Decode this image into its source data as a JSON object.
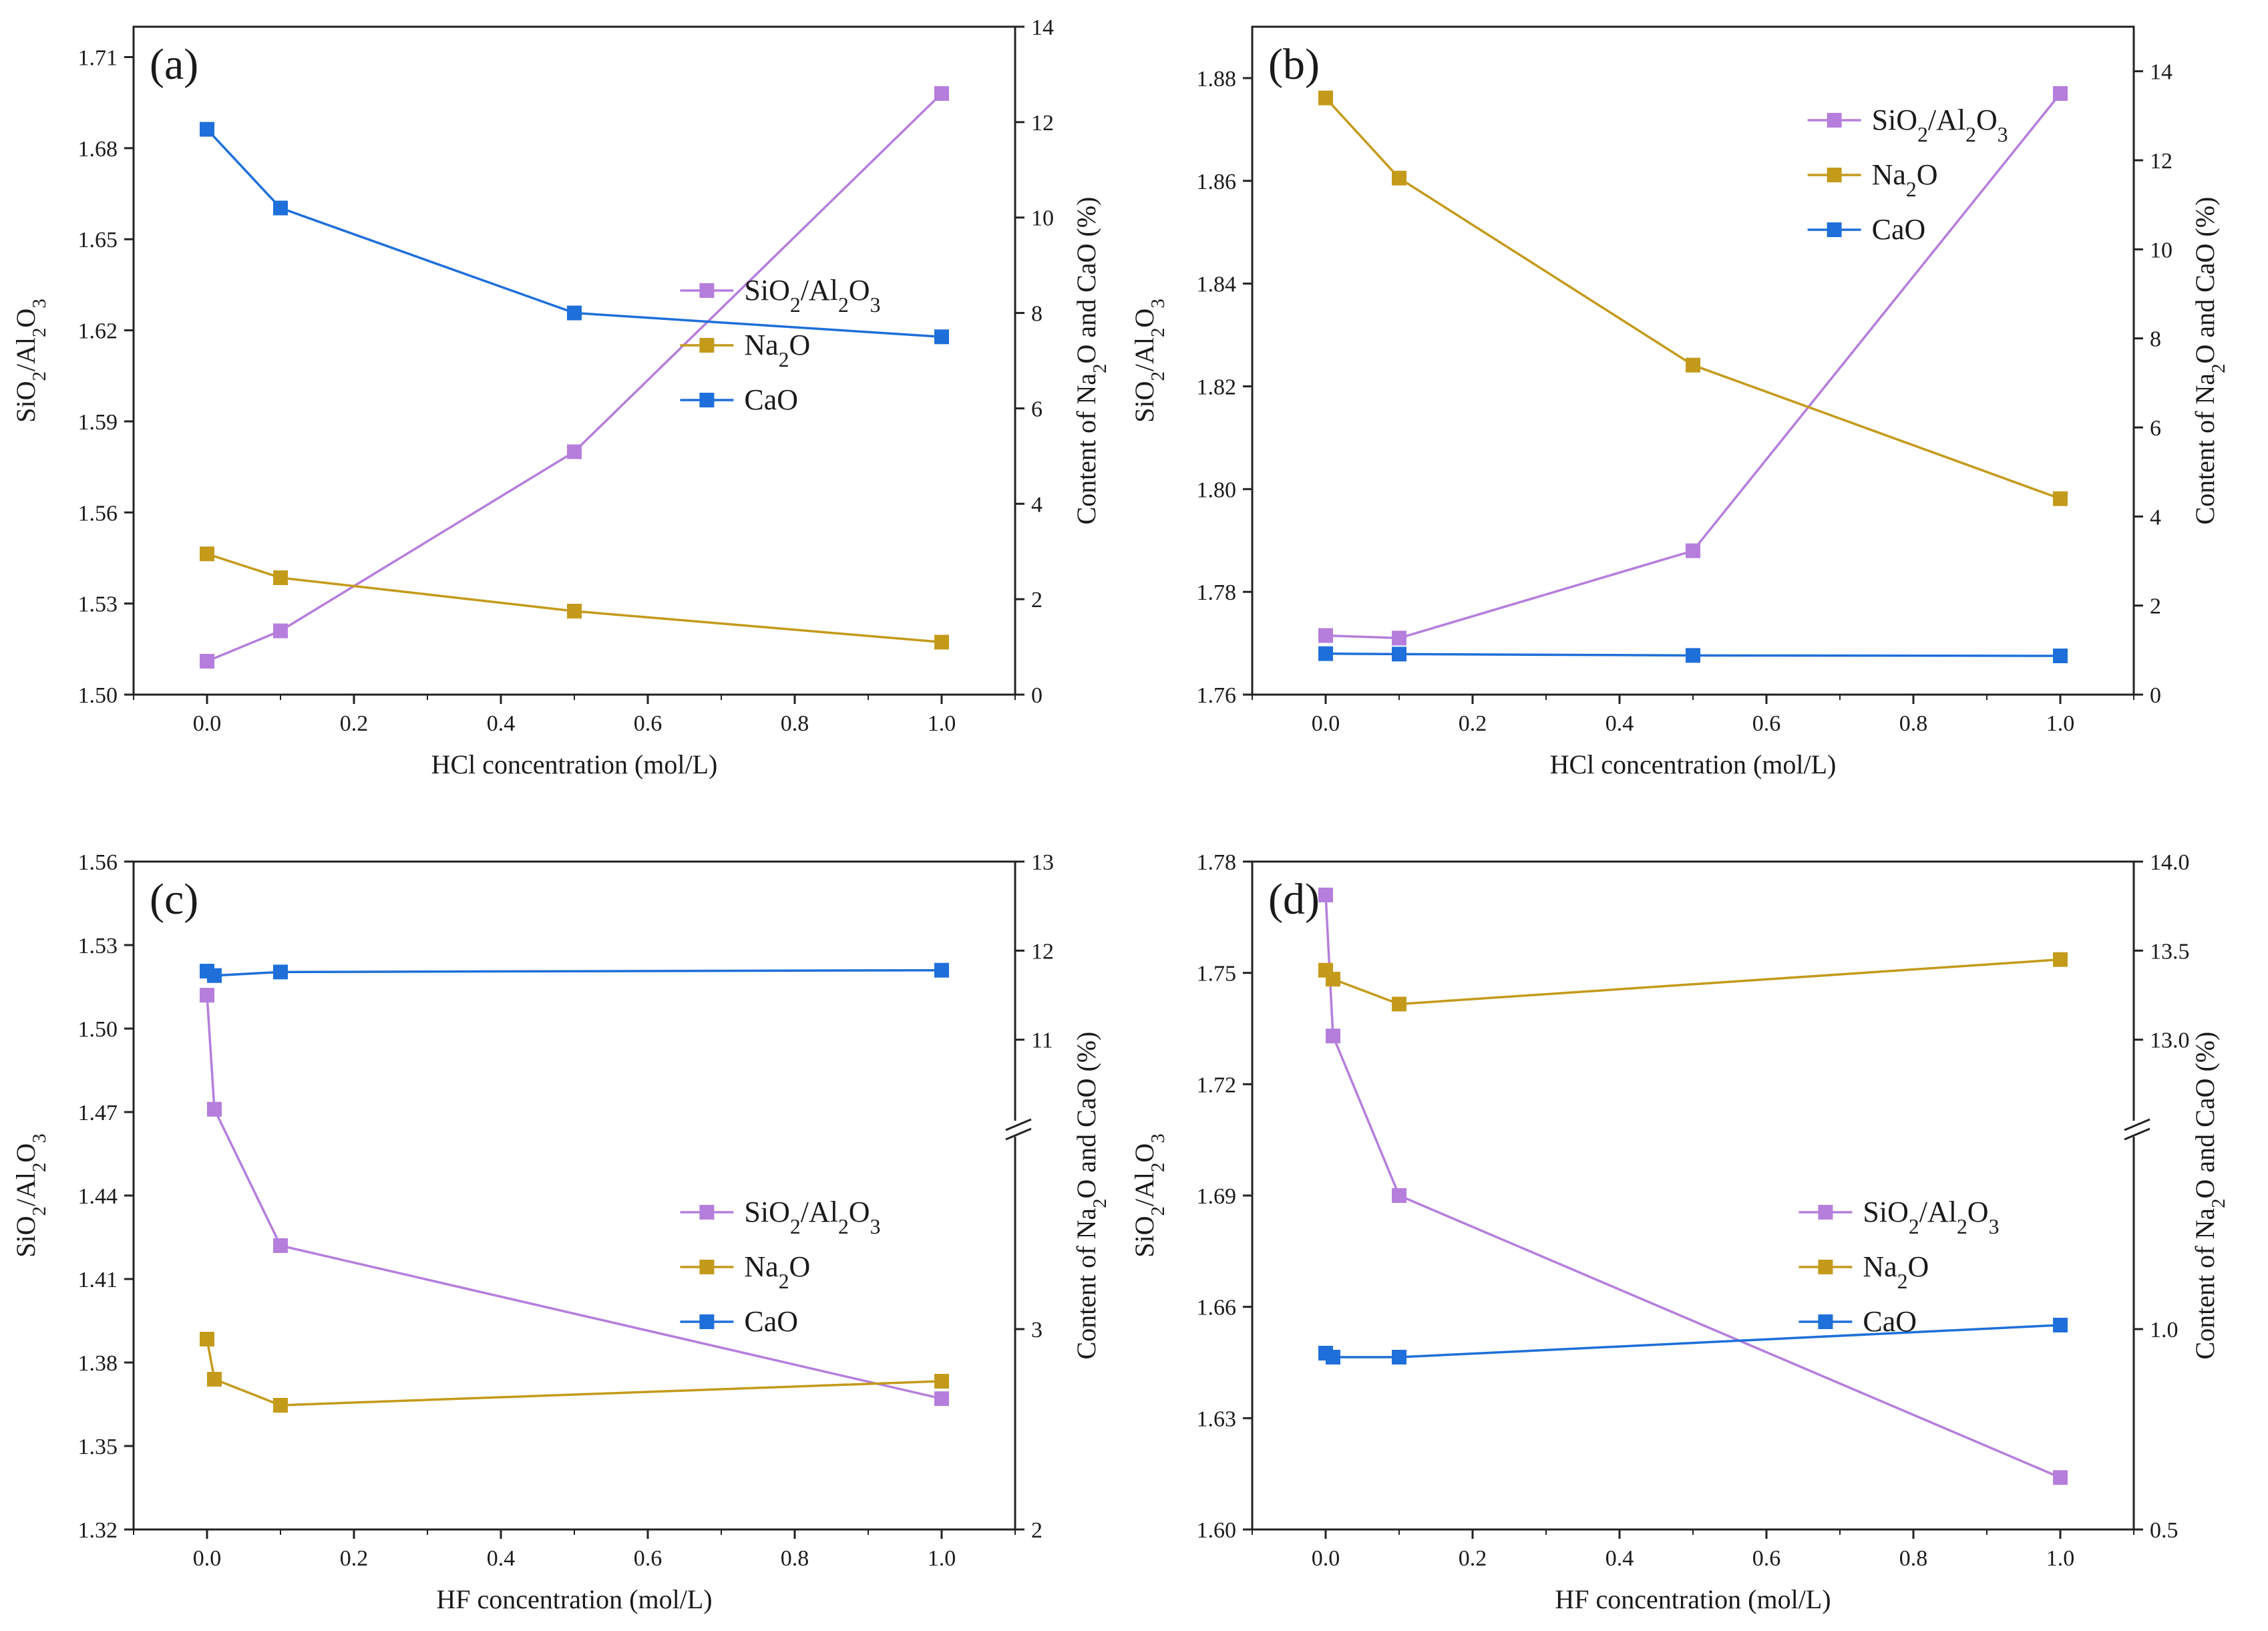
{
  "chart_data": [
    {
      "type": "line",
      "panel_label": "(a)",
      "xlabel": "HCl concentration (mol/L)",
      "ylabel_left": "SiO2/Al2O3",
      "ylabel_right": "Content of Na2O and CaO (%)",
      "xlim": [
        -0.1,
        1.1
      ],
      "x_ticks": [
        0.0,
        0.2,
        0.4,
        0.6,
        0.8,
        1.0
      ],
      "x_tick_labels": [
        "0.0",
        "0.2",
        "0.4",
        "0.6",
        "0.8",
        "1.0"
      ],
      "left_axis": {
        "ylim": [
          1.5,
          1.72
        ],
        "ticks": [
          1.5,
          1.53,
          1.56,
          1.59,
          1.62,
          1.65,
          1.68,
          1.71
        ],
        "tick_labels": [
          "1.50",
          "1.53",
          "1.56",
          "1.59",
          "1.62",
          "1.65",
          "1.68",
          "1.71"
        ]
      },
      "right_axis": {
        "ylim": [
          0,
          14
        ],
        "ticks": [
          0,
          2,
          4,
          6,
          8,
          10,
          12,
          14
        ],
        "tick_labels": [
          "0",
          "2",
          "4",
          "6",
          "8",
          "10",
          "12",
          "14"
        ]
      },
      "legend_position": "center-right",
      "series": [
        {
          "name": "SiO2/Al2O3",
          "axis": "left",
          "color": "#b57edc",
          "x": [
            0.0,
            0.1,
            0.5,
            1.0
          ],
          "values": [
            1.511,
            1.521,
            1.58,
            1.698
          ]
        },
        {
          "name": "Na2O",
          "axis": "right",
          "color": "#c49a1a",
          "x": [
            0.0,
            0.1,
            0.5,
            1.0
          ],
          "values": [
            2.95,
            2.45,
            1.75,
            1.1
          ]
        },
        {
          "name": "CaO",
          "axis": "right",
          "color": "#1e6fd9",
          "x": [
            0.0,
            0.1,
            0.5,
            1.0
          ],
          "values": [
            11.85,
            10.2,
            8.0,
            7.5
          ]
        }
      ]
    },
    {
      "type": "line",
      "panel_label": "(b)",
      "xlabel": "HCl concentration (mol/L)",
      "ylabel_left": "SiO2/Al2O3",
      "ylabel_right": "Content of Na2O and CaO (%)",
      "xlim": [
        -0.1,
        1.1
      ],
      "x_ticks": [
        0.0,
        0.2,
        0.4,
        0.6,
        0.8,
        1.0
      ],
      "x_tick_labels": [
        "0.0",
        "0.2",
        "0.4",
        "0.6",
        "0.8",
        "1.0"
      ],
      "left_axis": {
        "ylim": [
          1.76,
          1.89
        ],
        "ticks": [
          1.76,
          1.78,
          1.8,
          1.82,
          1.84,
          1.86,
          1.88
        ],
        "tick_labels": [
          "1.76",
          "1.78",
          "1.80",
          "1.82",
          "1.84",
          "1.86",
          "1.88"
        ]
      },
      "right_axis": {
        "ylim": [
          0,
          15
        ],
        "ticks": [
          0,
          2,
          4,
          6,
          8,
          10,
          12,
          14
        ],
        "tick_labels": [
          "0",
          "2",
          "4",
          "6",
          "8",
          "10",
          "12",
          "14"
        ]
      },
      "legend_position": "top-right",
      "series": [
        {
          "name": "SiO2/Al2O3",
          "axis": "left",
          "color": "#b57edc",
          "x": [
            0.0,
            0.1,
            0.5,
            1.0
          ],
          "values": [
            1.7715,
            1.771,
            1.788,
            1.877
          ]
        },
        {
          "name": "Na2O",
          "axis": "right",
          "color": "#c49a1a",
          "x": [
            0.0,
            0.1,
            0.5,
            1.0
          ],
          "values": [
            13.4,
            11.6,
            7.4,
            4.4
          ]
        },
        {
          "name": "CaO",
          "axis": "right",
          "color": "#1e6fd9",
          "x": [
            0.0,
            0.1,
            0.5,
            1.0
          ],
          "values": [
            0.92,
            0.91,
            0.88,
            0.87
          ]
        }
      ]
    },
    {
      "type": "line",
      "panel_label": "(c)",
      "xlabel": "HF concentration (mol/L)",
      "ylabel_left": "SiO2/Al2O3",
      "ylabel_right": "Content of Na2O and CaO (%)",
      "xlim": [
        -0.1,
        1.1
      ],
      "x_ticks": [
        0.0,
        0.2,
        0.4,
        0.6,
        0.8,
        1.0
      ],
      "x_tick_labels": [
        "0.0",
        "0.2",
        "0.4",
        "0.6",
        "0.8",
        "1.0"
      ],
      "left_axis": {
        "ylim": [
          1.32,
          1.56
        ],
        "ticks": [
          1.32,
          1.35,
          1.38,
          1.41,
          1.44,
          1.47,
          1.5,
          1.53,
          1.56
        ],
        "tick_labels": [
          "1.32",
          "1.35",
          "1.38",
          "1.41",
          "1.44",
          "1.47",
          "1.50",
          "1.53",
          "1.56"
        ]
      },
      "right_axis": {
        "broken": true,
        "lower_range": [
          2,
          4
        ],
        "upper_range": [
          10,
          13
        ],
        "ticks": [
          2,
          3,
          11,
          12,
          13
        ],
        "tick_labels": [
          "2",
          "3",
          "11",
          "12",
          "13"
        ]
      },
      "legend_position": "center-right",
      "series": [
        {
          "name": "SiO2/Al2O3",
          "axis": "left",
          "color": "#b57edc",
          "x": [
            0.0,
            0.01,
            0.1,
            1.0
          ],
          "values": [
            1.512,
            1.471,
            1.422,
            1.367
          ]
        },
        {
          "name": "Na2O",
          "axis": "right",
          "color": "#c49a1a",
          "x": [
            0.0,
            0.01,
            0.1,
            1.0
          ],
          "values": [
            2.95,
            2.75,
            2.62,
            2.74
          ]
        },
        {
          "name": "CaO",
          "axis": "right",
          "color": "#1e6fd9",
          "x": [
            0.0,
            0.01,
            0.1,
            1.0
          ],
          "values": [
            11.77,
            11.72,
            11.76,
            11.78
          ]
        }
      ]
    },
    {
      "type": "line",
      "panel_label": "(d)",
      "xlabel": "HF concentration (mol/L)",
      "ylabel_left": "SiO2/Al2O3",
      "ylabel_right": "Content of Na2O and CaO (%)",
      "xlim": [
        -0.1,
        1.1
      ],
      "x_ticks": [
        0.0,
        0.2,
        0.4,
        0.6,
        0.8,
        1.0
      ],
      "x_tick_labels": [
        "0.0",
        "0.2",
        "0.4",
        "0.6",
        "0.8",
        "1.0"
      ],
      "left_axis": {
        "ylim": [
          1.6,
          1.78
        ],
        "ticks": [
          1.6,
          1.63,
          1.66,
          1.69,
          1.72,
          1.75,
          1.78
        ],
        "tick_labels": [
          "1.60",
          "1.63",
          "1.66",
          "1.69",
          "1.72",
          "1.75",
          "1.78"
        ]
      },
      "right_axis": {
        "broken": true,
        "lower_range": [
          0.5,
          1.5
        ],
        "upper_range": [
          12.5,
          14.0
        ],
        "ticks": [
          0.5,
          1.0,
          13.0,
          13.5,
          14.0
        ],
        "tick_labels": [
          "0.5",
          "1.0",
          "13.0",
          "13.5",
          "14.0"
        ]
      },
      "legend_position": "center-right",
      "series": [
        {
          "name": "SiO2/Al2O3",
          "axis": "left",
          "color": "#b57edc",
          "x": [
            0.0,
            0.01,
            0.1,
            1.0
          ],
          "values": [
            1.771,
            1.733,
            1.69,
            1.614
          ]
        },
        {
          "name": "Na2O",
          "axis": "right",
          "color": "#c49a1a",
          "x": [
            0.0,
            0.01,
            0.1,
            1.0
          ],
          "values": [
            13.39,
            13.34,
            13.2,
            13.45
          ]
        },
        {
          "name": "CaO",
          "axis": "right",
          "color": "#1e6fd9",
          "x": [
            0.0,
            0.01,
            0.1,
            1.0
          ],
          "values": [
            0.94,
            0.93,
            0.93,
            1.01
          ]
        }
      ]
    }
  ]
}
